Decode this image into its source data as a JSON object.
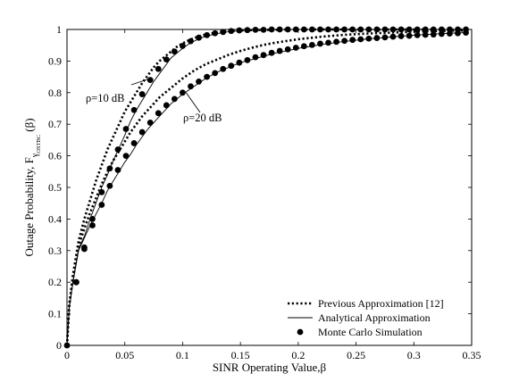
{
  "chart_data": {
    "type": "line",
    "xlabel": "SINR Operating Value,β",
    "ylabel_main": "Outage Probability, F",
    "ylabel_sub": "γ",
    "ylabel_subsub": "OSTBC",
    "ylabel_arg": "(β)",
    "xlim": [
      0,
      0.35
    ],
    "ylim": [
      0,
      1
    ],
    "x_ticks": [
      0,
      0.05,
      0.1,
      0.15,
      0.2,
      0.25,
      0.3,
      0.35
    ],
    "x_tick_labels": [
      "0",
      "0.05",
      "0.1",
      "0.15",
      "0.2",
      "0.25",
      "0.3",
      "0.35"
    ],
    "y_ticks": [
      0,
      0.1,
      0.2,
      0.3,
      0.4,
      0.5,
      0.6,
      0.7,
      0.8,
      0.9,
      1
    ],
    "y_tick_labels": [
      "0",
      "0.1",
      "0.2",
      "0.3",
      "0.4",
      "0.5",
      "0.6",
      "0.7",
      "0.8",
      "0.9",
      "1"
    ],
    "grid": false,
    "legend_position": "bottom-right",
    "legend": {
      "items": [
        {
          "label": "Previous Approximation [12]",
          "style": "dotted"
        },
        {
          "label": "Analytical Approximation",
          "style": "solid"
        },
        {
          "label": "Monte Carlo Simulation",
          "style": "marker"
        }
      ]
    },
    "annotations": [
      {
        "text": "ρ=10 dB",
        "point_x": 0.072,
        "point_y": 0.845
      },
      {
        "text": "ρ=20 dB",
        "point_x": 0.103,
        "point_y": 0.8
      }
    ],
    "series": [
      {
        "curve": "rho10",
        "style": "solid",
        "x": [
          0,
          0.002,
          0.005,
          0.01,
          0.015,
          0.02,
          0.025,
          0.03,
          0.035,
          0.04,
          0.045,
          0.05,
          0.055,
          0.06,
          0.065,
          0.07,
          0.075,
          0.08,
          0.085,
          0.09,
          0.095,
          0.1,
          0.105,
          0.11,
          0.115,
          0.12,
          0.125,
          0.13,
          0.135,
          0.14,
          0.15,
          0.16,
          0.17,
          0.18,
          0.2,
          0.22,
          0.25,
          0.28,
          0.31,
          0.345
        ],
        "y": [
          0,
          0.12,
          0.2,
          0.305,
          0.345,
          0.4,
          0.45,
          0.5,
          0.54,
          0.585,
          0.625,
          0.665,
          0.71,
          0.745,
          0.775,
          0.805,
          0.835,
          0.86,
          0.885,
          0.91,
          0.925,
          0.94,
          0.953,
          0.963,
          0.972,
          0.978,
          0.983,
          0.987,
          0.99,
          0.993,
          0.996,
          0.998,
          0.999,
          1.0,
          1.0,
          1.0,
          1.0,
          1.0,
          1.0,
          1.0
        ]
      },
      {
        "curve": "rho20",
        "style": "solid",
        "x": [
          0,
          0.002,
          0.005,
          0.01,
          0.015,
          0.02,
          0.025,
          0.03,
          0.035,
          0.04,
          0.045,
          0.05,
          0.055,
          0.06,
          0.065,
          0.07,
          0.075,
          0.08,
          0.085,
          0.09,
          0.095,
          0.1,
          0.11,
          0.12,
          0.13,
          0.14,
          0.15,
          0.16,
          0.17,
          0.18,
          0.19,
          0.2,
          0.21,
          0.22,
          0.23,
          0.24,
          0.25,
          0.26,
          0.27,
          0.28,
          0.29,
          0.3,
          0.31,
          0.32,
          0.33,
          0.345
        ],
        "y": [
          0,
          0.12,
          0.195,
          0.3,
          0.34,
          0.38,
          0.415,
          0.45,
          0.49,
          0.52,
          0.55,
          0.58,
          0.605,
          0.635,
          0.66,
          0.685,
          0.705,
          0.725,
          0.745,
          0.765,
          0.78,
          0.795,
          0.82,
          0.845,
          0.865,
          0.88,
          0.895,
          0.905,
          0.915,
          0.925,
          0.932,
          0.94,
          0.946,
          0.952,
          0.957,
          0.962,
          0.966,
          0.97,
          0.973,
          0.976,
          0.979,
          0.982,
          0.984,
          0.986,
          0.988,
          0.99
        ]
      },
      {
        "curve": "rho10",
        "style": "dotted",
        "x": [
          0,
          0.002,
          0.005,
          0.01,
          0.015,
          0.02,
          0.025,
          0.03,
          0.035,
          0.04,
          0.045,
          0.05,
          0.055,
          0.06,
          0.065,
          0.07,
          0.075,
          0.08,
          0.085,
          0.09,
          0.095,
          0.1,
          0.105,
          0.11,
          0.115,
          0.12,
          0.13,
          0.14,
          0.16,
          0.2,
          0.25,
          0.3,
          0.345
        ],
        "y": [
          0,
          0.13,
          0.22,
          0.33,
          0.4,
          0.46,
          0.52,
          0.57,
          0.62,
          0.66,
          0.7,
          0.74,
          0.77,
          0.8,
          0.83,
          0.855,
          0.88,
          0.9,
          0.915,
          0.93,
          0.945,
          0.956,
          0.965,
          0.973,
          0.979,
          0.984,
          0.991,
          0.995,
          0.998,
          1.0,
          1.0,
          1.0,
          1.0
        ]
      },
      {
        "curve": "rho20",
        "style": "dotted",
        "x": [
          0,
          0.002,
          0.005,
          0.01,
          0.015,
          0.02,
          0.025,
          0.03,
          0.035,
          0.04,
          0.045,
          0.05,
          0.055,
          0.06,
          0.065,
          0.07,
          0.075,
          0.08,
          0.085,
          0.09,
          0.095,
          0.1,
          0.11,
          0.12,
          0.13,
          0.14,
          0.15,
          0.16,
          0.17,
          0.18,
          0.2,
          0.22,
          0.24,
          0.26,
          0.28,
          0.3,
          0.32,
          0.345
        ],
        "y": [
          0,
          0.13,
          0.21,
          0.315,
          0.37,
          0.42,
          0.465,
          0.51,
          0.55,
          0.585,
          0.615,
          0.645,
          0.675,
          0.7,
          0.725,
          0.745,
          0.765,
          0.785,
          0.8,
          0.815,
          0.83,
          0.845,
          0.87,
          0.89,
          0.905,
          0.92,
          0.932,
          0.942,
          0.951,
          0.958,
          0.969,
          0.977,
          0.983,
          0.987,
          0.99,
          0.993,
          0.995,
          0.997
        ]
      },
      {
        "curve": "rho10",
        "style": "marker",
        "x": [
          0,
          0.008,
          0.015,
          0.022,
          0.03,
          0.037,
          0.044,
          0.051,
          0.058,
          0.065,
          0.072,
          0.079,
          0.086,
          0.093,
          0.1,
          0.107,
          0.114,
          0.121,
          0.128,
          0.135,
          0.142,
          0.149,
          0.156,
          0.163,
          0.17,
          0.177,
          0.184,
          0.191,
          0.198,
          0.205,
          0.212,
          0.219,
          0.226,
          0.233,
          0.24,
          0.247,
          0.254,
          0.261,
          0.268,
          0.275,
          0.282,
          0.289,
          0.296,
          0.303,
          0.31,
          0.317,
          0.324,
          0.331,
          0.338,
          0.345
        ],
        "y": [
          0,
          0.2,
          0.31,
          0.4,
          0.485,
          0.56,
          0.62,
          0.685,
          0.745,
          0.795,
          0.84,
          0.875,
          0.905,
          0.93,
          0.948,
          0.963,
          0.974,
          0.982,
          0.988,
          0.992,
          0.995,
          0.997,
          0.998,
          0.999,
          0.999,
          1.0,
          1.0,
          1.0,
          1.0,
          1.0,
          1.0,
          1.0,
          1.0,
          1.0,
          1.0,
          1.0,
          1.0,
          1.0,
          1.0,
          1.0,
          1.0,
          1.0,
          1.0,
          1.0,
          1.0,
          1.0,
          1.0,
          1.0,
          1.0,
          1.0
        ]
      },
      {
        "curve": "rho20",
        "style": "marker",
        "x": [
          0.008,
          0.015,
          0.022,
          0.03,
          0.037,
          0.044,
          0.051,
          0.058,
          0.065,
          0.072,
          0.079,
          0.086,
          0.093,
          0.1,
          0.107,
          0.114,
          0.121,
          0.128,
          0.135,
          0.142,
          0.149,
          0.156,
          0.163,
          0.17,
          0.177,
          0.184,
          0.191,
          0.198,
          0.205,
          0.212,
          0.219,
          0.226,
          0.233,
          0.24,
          0.247,
          0.254,
          0.261,
          0.268,
          0.275,
          0.282,
          0.289,
          0.296,
          0.303,
          0.31,
          0.317,
          0.324,
          0.331,
          0.338,
          0.345
        ],
        "y": [
          0.2,
          0.305,
          0.38,
          0.445,
          0.505,
          0.555,
          0.6,
          0.64,
          0.675,
          0.705,
          0.735,
          0.76,
          0.78,
          0.8,
          0.82,
          0.835,
          0.85,
          0.862,
          0.875,
          0.885,
          0.895,
          0.903,
          0.912,
          0.919,
          0.926,
          0.932,
          0.937,
          0.942,
          0.947,
          0.951,
          0.955,
          0.958,
          0.961,
          0.964,
          0.967,
          0.969,
          0.971,
          0.973,
          0.975,
          0.977,
          0.979,
          0.98,
          0.982,
          0.983,
          0.984,
          0.986,
          0.987,
          0.988,
          0.99
        ]
      }
    ]
  }
}
